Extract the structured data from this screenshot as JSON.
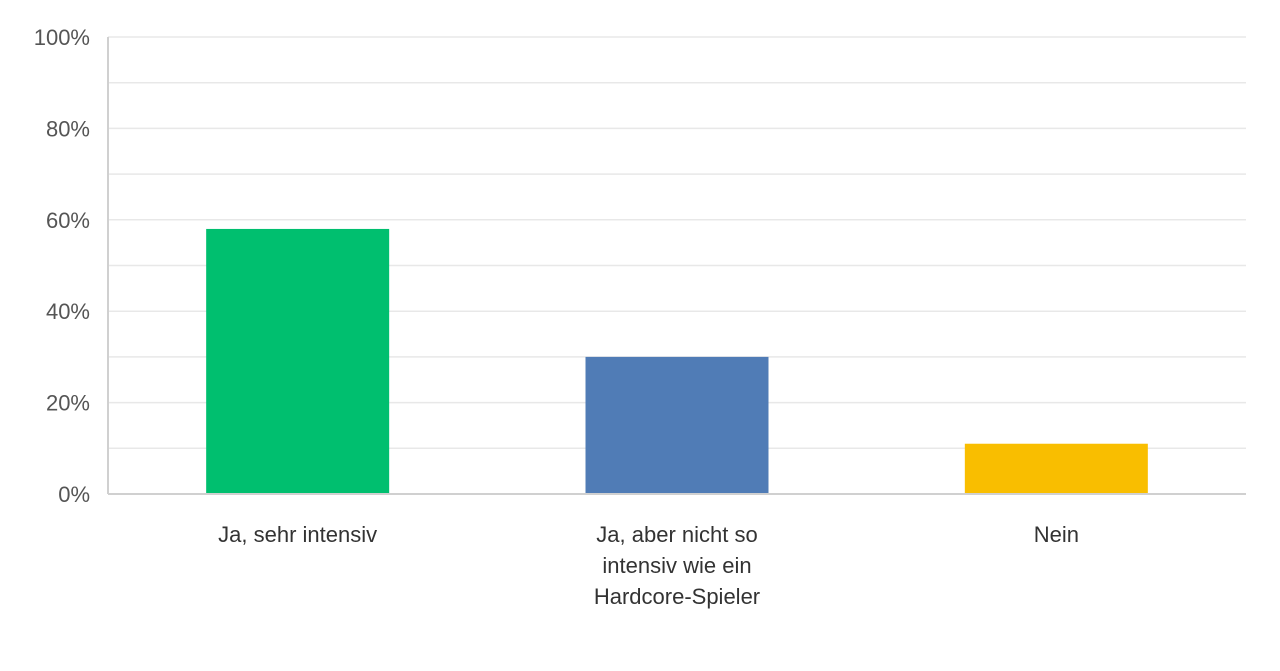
{
  "chart_data": {
    "type": "bar",
    "categories": [
      [
        "Ja, sehr intensiv"
      ],
      [
        "Ja, aber nicht so",
        "intensiv wie ein",
        "Hardcore-Spieler"
      ],
      [
        "Nein"
      ]
    ],
    "values": [
      58,
      30,
      11
    ],
    "colors": [
      "#00bf6f",
      "#507cb6",
      "#f9be00"
    ],
    "ylim": [
      0,
      100
    ],
    "yticks": [
      0,
      20,
      40,
      60,
      80,
      100
    ],
    "ytick_labels": [
      "0%",
      "20%",
      "40%",
      "60%",
      "80%",
      "100%"
    ],
    "minor_gridlines": true,
    "title": "",
    "xlabel": "",
    "ylabel": ""
  }
}
